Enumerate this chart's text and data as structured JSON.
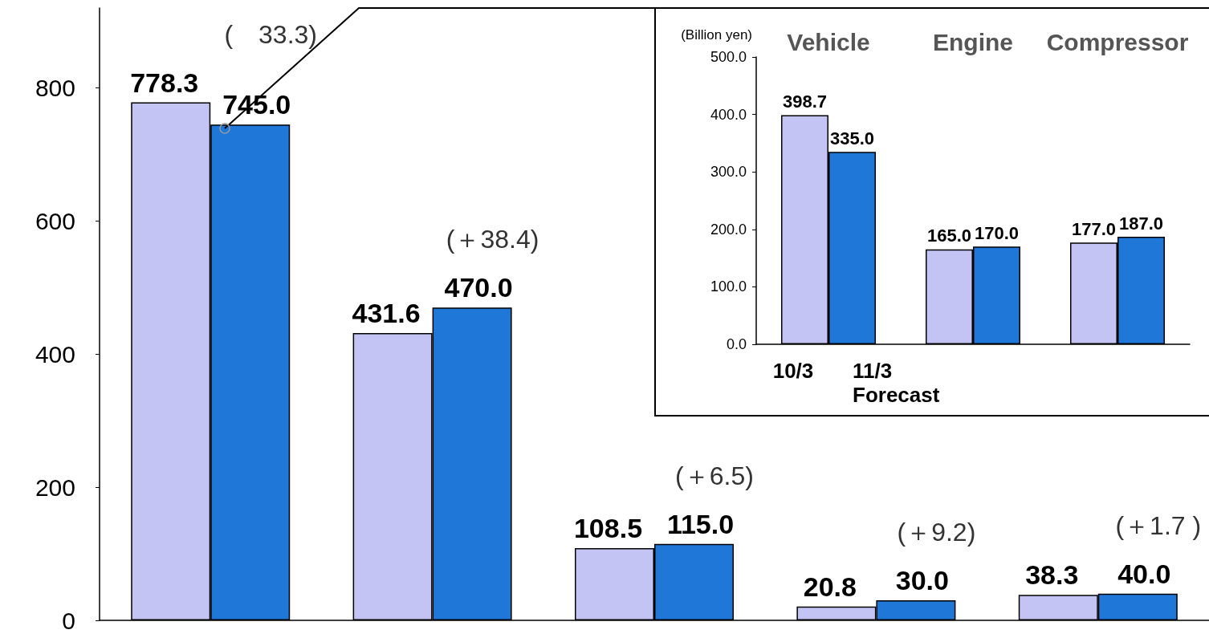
{
  "chart_data": [
    {
      "type": "bar",
      "categories": [
        null,
        null,
        null,
        null,
        null
      ],
      "series": [
        {
          "color": "#c4c4f4",
          "values": [
            778.3,
            431.6,
            108.5,
            20.8,
            38.3
          ],
          "value_labels": [
            "778.3",
            "431.6",
            "108.5",
            "20.8",
            "38.3"
          ]
        },
        {
          "color": "#1f78d8",
          "values": [
            745.0,
            470.0,
            115.0,
            30.0,
            40.0
          ],
          "value_labels": [
            "745.0",
            "470.0",
            "115.0",
            "30.0",
            "40.0"
          ]
        }
      ],
      "ylim": [
        0,
        920
      ],
      "yticks": [
        0,
        200,
        400,
        600,
        800
      ],
      "legend": false,
      "grid": false,
      "annotations": [
        "(　33.3)",
        "(＋38.4)",
        "(＋6.5)",
        "(＋9.2)",
        "(＋1.7 )"
      ]
    },
    {
      "type": "bar",
      "ylabel": "(Billion yen)",
      "categories": [
        "Vehicle",
        "Engine",
        "Compressor"
      ],
      "series": [
        {
          "name": "10/3",
          "color": "#c4c4f4",
          "values": [
            398.7,
            165.0,
            177.0
          ],
          "value_labels": [
            "398.7",
            "165.0",
            "177.0"
          ]
        },
        {
          "name": "11/3\nForecast",
          "color": "#1f78d8",
          "values": [
            335.0,
            170.0,
            187.0
          ],
          "value_labels": [
            "335.0",
            "170.0",
            "187.0"
          ]
        }
      ],
      "ylim": [
        0,
        500
      ],
      "yticks": [
        {
          "value": 0,
          "label": "0.0"
        },
        {
          "value": 100,
          "label": "100.0"
        },
        {
          "value": 200,
          "label": "200.0"
        },
        {
          "value": 300,
          "label": "300.0"
        },
        {
          "value": 400,
          "label": "400.0"
        },
        {
          "value": 500,
          "label": "500.0"
        }
      ],
      "legend": false,
      "grid": false
    }
  ]
}
